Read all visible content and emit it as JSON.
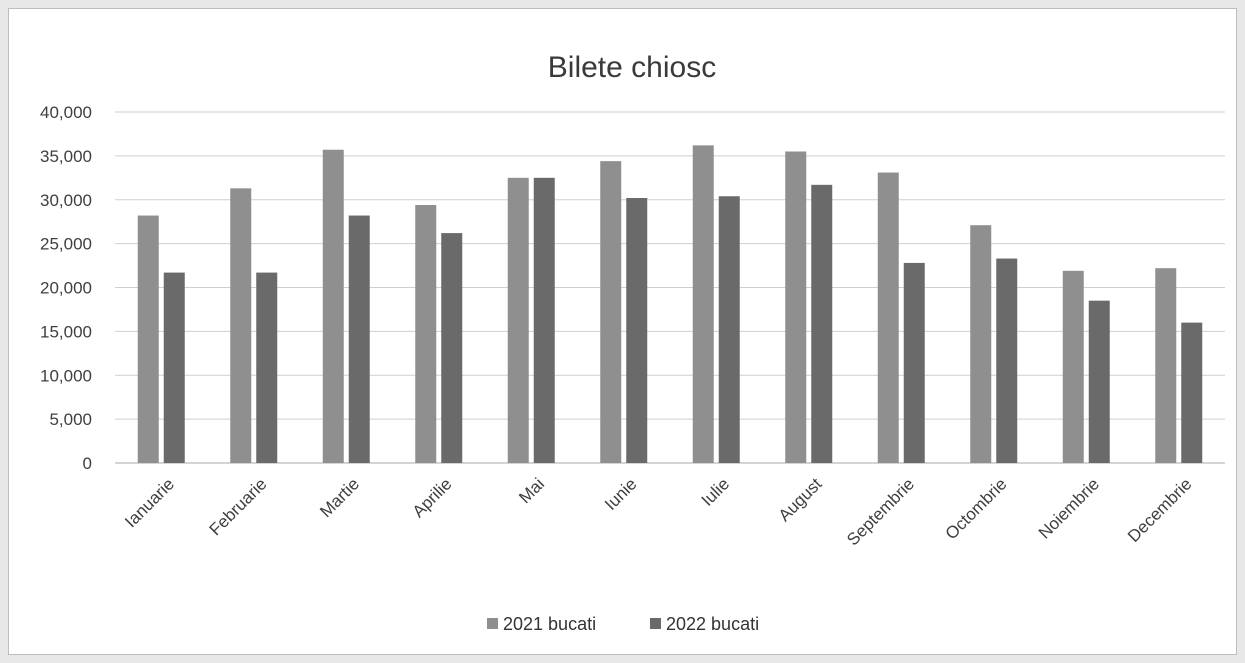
{
  "chart_data": {
    "type": "bar",
    "title": "Bilete chiosc",
    "xlabel": "",
    "ylabel": "",
    "ylim": [
      0,
      40000
    ],
    "yticks": [
      "0",
      "5,000",
      "10,000",
      "15,000",
      "20,000",
      "25,000",
      "30,000",
      "35,000",
      "40,000"
    ],
    "ytick_values": [
      0,
      5000,
      10000,
      15000,
      20000,
      25000,
      30000,
      35000,
      40000
    ],
    "grid": true,
    "legend_position": "bottom",
    "categories": [
      "Ianuarie",
      "Februarie",
      "Martie",
      "Aprilie",
      "Mai",
      "Iunie",
      "Iulie",
      "August",
      "Septembrie",
      "Octombrie",
      "Noiembrie",
      "Decembrie"
    ],
    "series": [
      {
        "name": "2021 bucati",
        "color": "#8f8f8f",
        "values": [
          28200,
          31300,
          35700,
          29400,
          32500,
          34400,
          36200,
          35500,
          33100,
          27100,
          21900,
          22200
        ]
      },
      {
        "name": "2022 bucati",
        "color": "#6a6a6a",
        "values": [
          21700,
          21700,
          28200,
          26200,
          32500,
          30200,
          30400,
          31700,
          22800,
          23300,
          18500,
          16000
        ]
      }
    ]
  }
}
